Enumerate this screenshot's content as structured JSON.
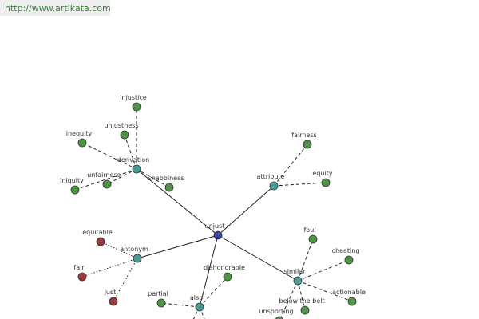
{
  "header": {
    "url": "http://www.artikata.com"
  },
  "nodes": [
    {
      "label": "unjust"
    },
    {
      "label": "derivation"
    },
    {
      "label": "attribute"
    },
    {
      "label": "antonym"
    },
    {
      "label": "similar"
    },
    {
      "label": "also"
    },
    {
      "label": "injustice"
    },
    {
      "label": "unjustness"
    },
    {
      "label": "inequity"
    },
    {
      "label": "unfairness"
    },
    {
      "label": "iniquity"
    },
    {
      "label": "shabbiness"
    },
    {
      "label": "fairness"
    },
    {
      "label": "equity"
    },
    {
      "label": "equitable"
    },
    {
      "label": "fair"
    },
    {
      "label": "just"
    },
    {
      "label": "foul"
    },
    {
      "label": "cheating"
    },
    {
      "label": "actionable"
    },
    {
      "label": "below the belt"
    },
    {
      "label": "unsporting"
    },
    {
      "label": "dishonorable"
    },
    {
      "label": "partial"
    }
  ]
}
